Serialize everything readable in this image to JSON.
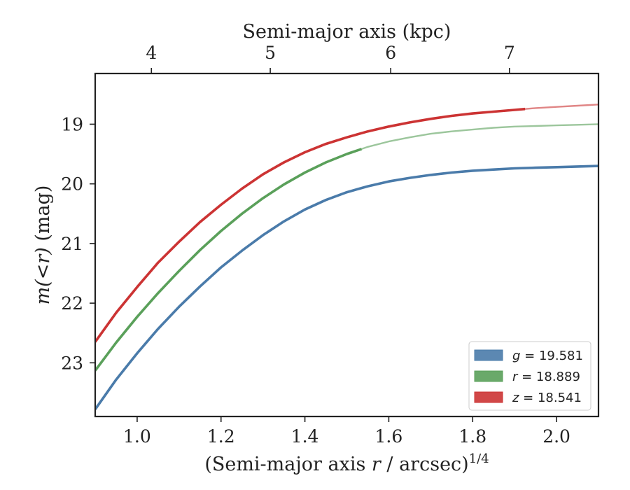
{
  "chart_data": {
    "type": "line",
    "xlabel": "(Semi-major axis r / arcsec)1/4",
    "xlabel_parts": {
      "prefix": "(Semi-major axis ",
      "var": "r",
      "suffix": " / arcsec)",
      "sup": "1/4"
    },
    "ylabel": "m(<r) (mag)",
    "ylabel_parts": {
      "italic": "m(<r)",
      "unit": " (mag)"
    },
    "top_xlabel": "Semi-major axis (kpc)",
    "xlim": [
      0.9,
      2.1
    ],
    "ylim": [
      23.9,
      18.15
    ],
    "y_inverted": true,
    "x_ticks": [
      1.0,
      1.2,
      1.4,
      1.6,
      1.8,
      2.0
    ],
    "x_tick_labels": [
      "1.0",
      "1.2",
      "1.4",
      "1.6",
      "1.8",
      "2.0"
    ],
    "y_ticks": [
      19,
      20,
      21,
      22,
      23
    ],
    "y_tick_labels": [
      "19",
      "20",
      "21",
      "22",
      "23"
    ],
    "top_ticks": [
      4,
      5,
      6,
      7
    ],
    "top_tick_labels": [
      "4",
      "5",
      "6",
      "7"
    ],
    "top_tick_positions_x": [
      1.034,
      1.3174,
      1.6046,
      1.8877
    ],
    "grid": false,
    "legend_position": "lower-right",
    "series": [
      {
        "name": "g = 19.581",
        "legend_var": "g",
        "legend_value": "19.581",
        "color": "#4a7baa",
        "x": [
          0.9,
          0.95,
          1.0,
          1.05,
          1.1,
          1.15,
          1.2,
          1.25,
          1.3,
          1.35,
          1.4,
          1.45,
          1.5,
          1.55,
          1.6,
          1.65,
          1.7,
          1.75,
          1.8,
          1.85,
          1.9,
          1.95,
          2.0,
          2.05,
          2.1
        ],
        "y": [
          23.78,
          23.28,
          22.84,
          22.43,
          22.06,
          21.72,
          21.4,
          21.12,
          20.86,
          20.63,
          20.43,
          20.27,
          20.14,
          20.04,
          19.96,
          19.9,
          19.85,
          19.81,
          19.78,
          19.76,
          19.74,
          19.73,
          19.72,
          19.71,
          19.7
        ],
        "solid_until": 2.1
      },
      {
        "name": "r = 18.889",
        "legend_var": "r",
        "legend_value": "18.889",
        "color": "#5aa05a",
        "x": [
          0.9,
          0.95,
          1.0,
          1.05,
          1.1,
          1.15,
          1.2,
          1.25,
          1.3,
          1.35,
          1.4,
          1.45,
          1.5,
          1.55,
          1.6,
          1.65,
          1.7,
          1.75,
          1.8,
          1.85,
          1.9,
          1.95,
          2.0,
          2.05,
          2.1
        ],
        "y": [
          23.13,
          22.66,
          22.23,
          21.83,
          21.46,
          21.11,
          20.79,
          20.5,
          20.24,
          20.01,
          19.81,
          19.64,
          19.5,
          19.38,
          19.29,
          19.22,
          19.16,
          19.12,
          19.09,
          19.06,
          19.04,
          19.03,
          19.02,
          19.01,
          19.0
        ],
        "solid_until": 1.535
      },
      {
        "name": "z = 18.541",
        "legend_var": "z",
        "legend_value": "18.541",
        "color": "#cc3333",
        "x": [
          0.9,
          0.95,
          1.0,
          1.05,
          1.1,
          1.15,
          1.2,
          1.25,
          1.3,
          1.35,
          1.4,
          1.45,
          1.5,
          1.55,
          1.6,
          1.65,
          1.7,
          1.75,
          1.8,
          1.85,
          1.9,
          1.95,
          2.0,
          2.05,
          2.1
        ],
        "y": [
          22.65,
          22.16,
          21.73,
          21.32,
          20.97,
          20.64,
          20.35,
          20.08,
          19.84,
          19.64,
          19.47,
          19.33,
          19.22,
          19.12,
          19.04,
          18.97,
          18.91,
          18.86,
          18.82,
          18.79,
          18.76,
          18.73,
          18.71,
          18.69,
          18.67
        ],
        "solid_until": 1.925
      }
    ]
  }
}
